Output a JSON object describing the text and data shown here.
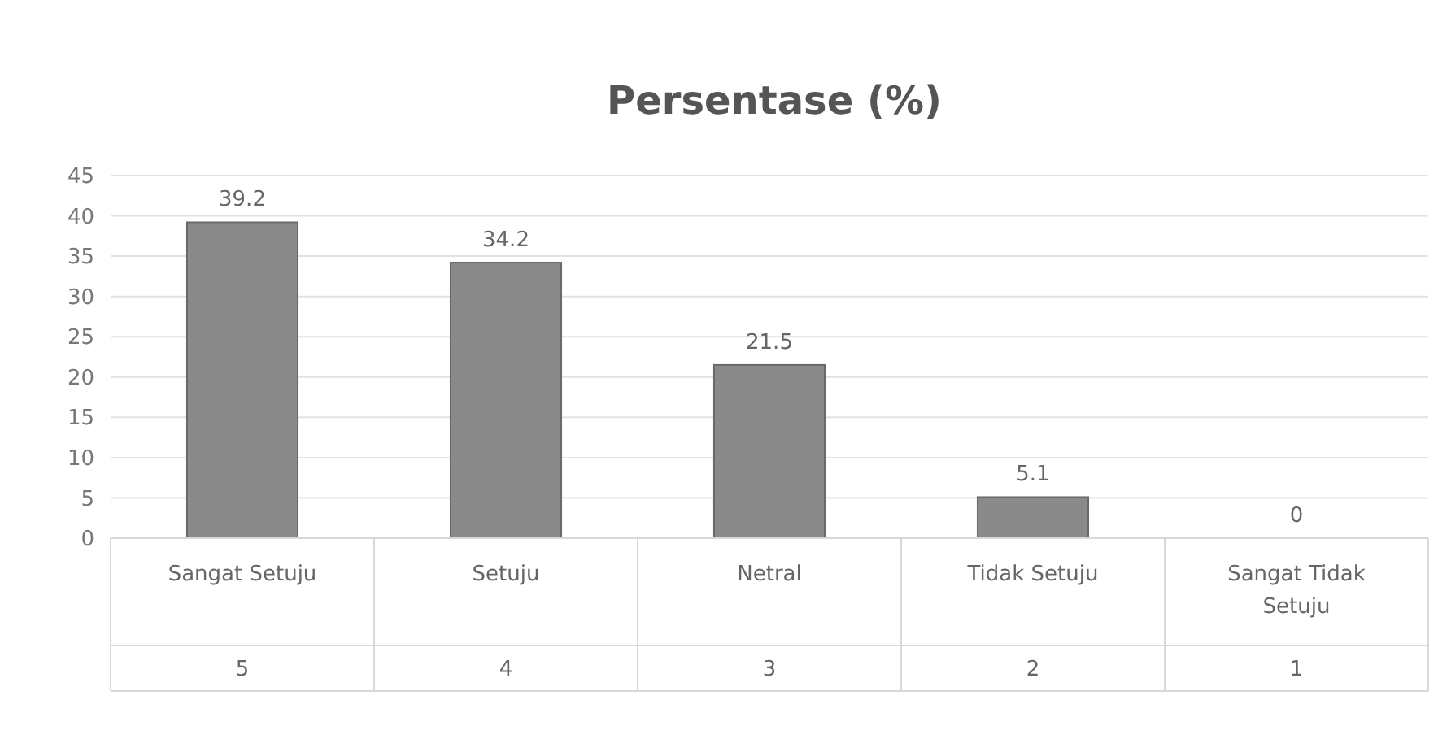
{
  "chart_data": {
    "type": "bar",
    "title": "Persentase (%)",
    "categories": [
      "Sangat Setuju",
      "Setuju",
      "Netral",
      "Tidak Setuju",
      "Sangat Tidak Setuju"
    ],
    "values": [
      39.2,
      34.2,
      21.5,
      5.1,
      0
    ],
    "color": "#8a8a8a",
    "ylim": [
      0,
      45
    ],
    "yticks": [
      0,
      5,
      10,
      15,
      20,
      25,
      30,
      35,
      40,
      45
    ],
    "grid": "y",
    "data_labels": true,
    "annotations": [
      "5",
      "4",
      "3",
      "2",
      "1"
    ]
  }
}
